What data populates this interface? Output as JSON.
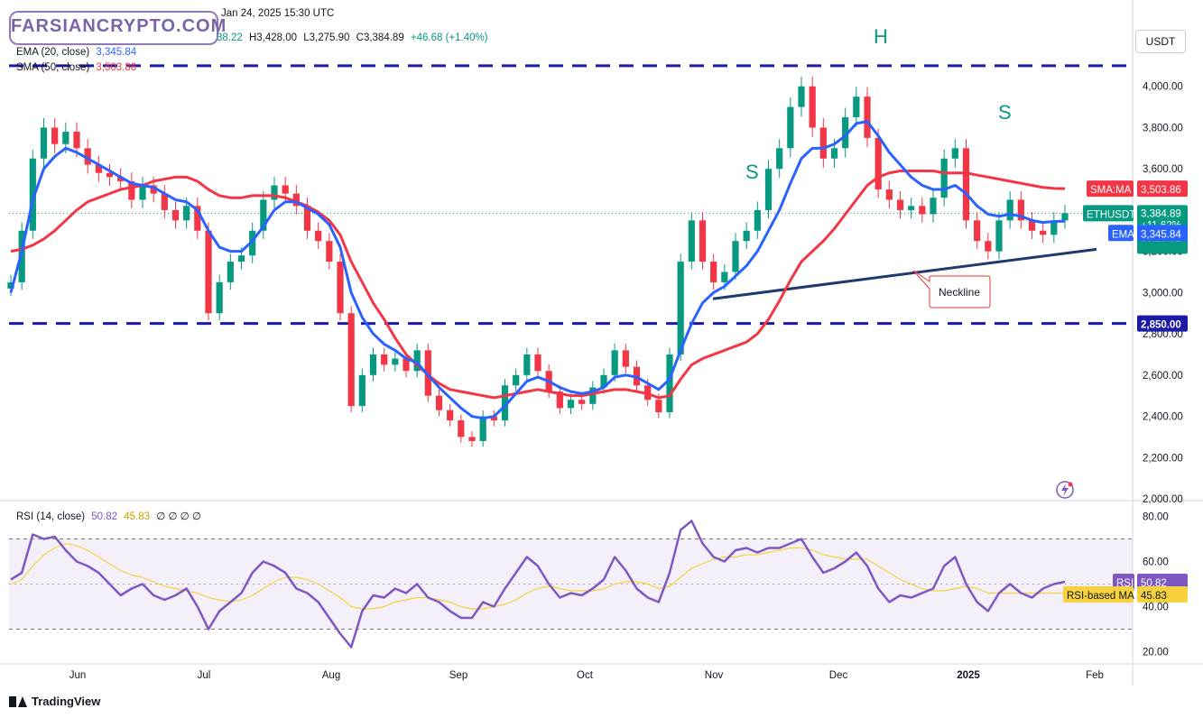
{
  "header": {
    "date": "Jan 24, 2025 15:30 UTC",
    "open_partial": "38.22",
    "high": "H3,428.00",
    "low": "L3,275.90",
    "close": "C3,384.89",
    "change": "+46.68 (+1.40%)",
    "ema_label": "EMA (20, close)",
    "ema_value": "3,345.84",
    "sma_label": "SMA (50, close)",
    "sma_value": "3,503.86",
    "currency": "USDT",
    "watermark": "FARSIANCRYPTO.COM"
  },
  "rsi_header": {
    "label": "RSI (14, close)",
    "value": "50.82",
    "ma_value": "45.83",
    "empty_values": "∅ ∅ ∅ ∅"
  },
  "badges": {
    "sma_name": "SMA:MA",
    "sma_value": "3,503.86",
    "symbol": "ETHUSDT",
    "price": "3,384.89",
    "pct": "+11.62%",
    "timer": "08:29:01",
    "ema_name": "EMA",
    "ema_value": "3,345.84",
    "support": "2,850.00",
    "rsi_name": "RSI",
    "rsi_value": "50.82",
    "rsi_ma_name": "RSI-based MA",
    "rsi_ma_value": "45.83"
  },
  "annotations": {
    "left_shoulder": "S",
    "head": "H",
    "right_shoulder": "S",
    "neckline": "Neckline"
  },
  "footer": {
    "brand": "TradingView"
  },
  "colors": {
    "ema": "#2962ff",
    "sma": "#f23645",
    "up": "#089981",
    "down": "#f23645",
    "rsi": "#7e57c2",
    "rsi_ma": "#f7d23e",
    "neckline": "#1e3a6e",
    "level": "#1a1aa6"
  },
  "chart_data": [
    {
      "type": "candlestick",
      "symbol": "ETHUSDT",
      "y_ticks": [
        "2,000.00",
        "2,200.00",
        "2,400.00",
        "2,600.00",
        "2,800.00",
        "3,000.00",
        "3,200.00",
        "3,400.00",
        "3,600.00",
        "3,800.00",
        "4,000.00"
      ],
      "x_ticks": [
        "Jun",
        "Jul",
        "Aug",
        "Sep",
        "Oct",
        "Nov",
        "Dec",
        "2025",
        "Feb"
      ],
      "ylim": [
        2000,
        4200
      ],
      "resistance": 4100,
      "support": 2850,
      "neckline": [
        [
          0.0,
          2970
        ],
        [
          1.0,
          3210
        ]
      ],
      "close_series": [
        3050,
        3300,
        3650,
        3800,
        3720,
        3780,
        3700,
        3620,
        3580,
        3560,
        3540,
        3450,
        3520,
        3480,
        3400,
        3350,
        3420,
        3300,
        2900,
        3050,
        3150,
        3180,
        3300,
        3450,
        3520,
        3480,
        3420,
        3300,
        3250,
        3150,
        2900,
        2450,
        2600,
        2700,
        2650,
        2680,
        2620,
        2720,
        2500,
        2430,
        2380,
        2300,
        2280,
        2400,
        2380,
        2550,
        2600,
        2700,
        2620,
        2520,
        2440,
        2480,
        2460,
        2540,
        2600,
        2720,
        2640,
        2550,
        2480,
        2420,
        2700,
        3150,
        3350,
        3150,
        3050,
        3100,
        3250,
        3300,
        3400,
        3600,
        3700,
        3900,
        4000,
        3800,
        3650,
        3700,
        3850,
        3950,
        3750,
        3500,
        3450,
        3400,
        3420,
        3380,
        3460,
        3650,
        3700,
        3350,
        3250,
        3200,
        3350,
        3450,
        3350,
        3300,
        3280,
        3350,
        3385
      ],
      "ema": {
        "name": "EMA",
        "period": 20,
        "values": [
          3000,
          3200,
          3450,
          3600,
          3660,
          3700,
          3680,
          3650,
          3620,
          3590,
          3560,
          3530,
          3520,
          3510,
          3480,
          3450,
          3440,
          3400,
          3300,
          3220,
          3200,
          3200,
          3250,
          3320,
          3400,
          3440,
          3440,
          3410,
          3380,
          3330,
          3220,
          3000,
          2880,
          2800,
          2750,
          2720,
          2680,
          2660,
          2600,
          2540,
          2490,
          2440,
          2400,
          2390,
          2400,
          2450,
          2510,
          2570,
          2590,
          2570,
          2540,
          2520,
          2510,
          2520,
          2540,
          2590,
          2600,
          2590,
          2560,
          2530,
          2580,
          2720,
          2850,
          2950,
          3000,
          3030,
          3080,
          3130,
          3200,
          3300,
          3400,
          3530,
          3650,
          3700,
          3700,
          3720,
          3760,
          3820,
          3830,
          3760,
          3680,
          3620,
          3560,
          3520,
          3500,
          3500,
          3520,
          3480,
          3420,
          3380,
          3370,
          3380,
          3370,
          3350,
          3340,
          3345,
          3346
        ]
      },
      "sma": {
        "name": "SMA",
        "period": 50,
        "values": [
          3200,
          3210,
          3230,
          3260,
          3300,
          3350,
          3400,
          3440,
          3460,
          3480,
          3500,
          3510,
          3520,
          3540,
          3550,
          3560,
          3560,
          3540,
          3500,
          3470,
          3460,
          3460,
          3470,
          3470,
          3470,
          3460,
          3440,
          3420,
          3390,
          3350,
          3280,
          3150,
          3050,
          2950,
          2870,
          2780,
          2700,
          2650,
          2600,
          2560,
          2530,
          2520,
          2510,
          2500,
          2490,
          2500,
          2510,
          2520,
          2530,
          2520,
          2510,
          2500,
          2500,
          2510,
          2520,
          2530,
          2530,
          2520,
          2510,
          2490,
          2500,
          2580,
          2650,
          2680,
          2700,
          2720,
          2740,
          2760,
          2800,
          2870,
          2960,
          3060,
          3150,
          3200,
          3250,
          3310,
          3380,
          3450,
          3520,
          3560,
          3580,
          3590,
          3590,
          3590,
          3590,
          3580,
          3580,
          3580,
          3570,
          3560,
          3550,
          3540,
          3530,
          3520,
          3510,
          3505,
          3504
        ]
      },
      "last": {
        "price": 3384.89,
        "ema": 3345.84,
        "sma": 3503.86
      }
    },
    {
      "type": "line",
      "name": "RSI (14, close)",
      "y_ticks": [
        "20.00",
        "40.00",
        "60.00",
        "80.00"
      ],
      "ylim": [
        15,
        85
      ],
      "bands": [
        30,
        70
      ],
      "middle": 50,
      "rsi": [
        52,
        55,
        72,
        70,
        71,
        65,
        60,
        58,
        55,
        50,
        45,
        48,
        50,
        45,
        43,
        45,
        48,
        40,
        30,
        38,
        42,
        46,
        55,
        60,
        58,
        55,
        48,
        46,
        42,
        35,
        28,
        22,
        38,
        45,
        44,
        48,
        46,
        50,
        44,
        42,
        38,
        35,
        35,
        42,
        40,
        48,
        55,
        62,
        58,
        50,
        44,
        46,
        45,
        48,
        52,
        62,
        56,
        48,
        44,
        42,
        55,
        74,
        78,
        68,
        62,
        60,
        65,
        66,
        64,
        66,
        66,
        68,
        70,
        62,
        55,
        57,
        60,
        64,
        58,
        48,
        42,
        45,
        44,
        46,
        48,
        58,
        62,
        50,
        42,
        38,
        46,
        50,
        46,
        44,
        48,
        50,
        51
      ],
      "rsi_ma": [
        50,
        52,
        58,
        63,
        66,
        68,
        67,
        65,
        62,
        59,
        56,
        54,
        53,
        51,
        49,
        48,
        47,
        46,
        44,
        43,
        42,
        43,
        45,
        48,
        51,
        53,
        53,
        52,
        50,
        47,
        44,
        40,
        39,
        39,
        40,
        42,
        43,
        44,
        44,
        43,
        42,
        40,
        39,
        39,
        40,
        41,
        43,
        46,
        48,
        49,
        48,
        47,
        47,
        47,
        48,
        50,
        51,
        51,
        50,
        48,
        49,
        53,
        57,
        59,
        61,
        62,
        62,
        63,
        63,
        64,
        65,
        66,
        66,
        65,
        63,
        62,
        61,
        61,
        61,
        58,
        55,
        52,
        50,
        48,
        47,
        47,
        48,
        49,
        48,
        46,
        46,
        46,
        46,
        46,
        46,
        46,
        46
      ]
    }
  ]
}
